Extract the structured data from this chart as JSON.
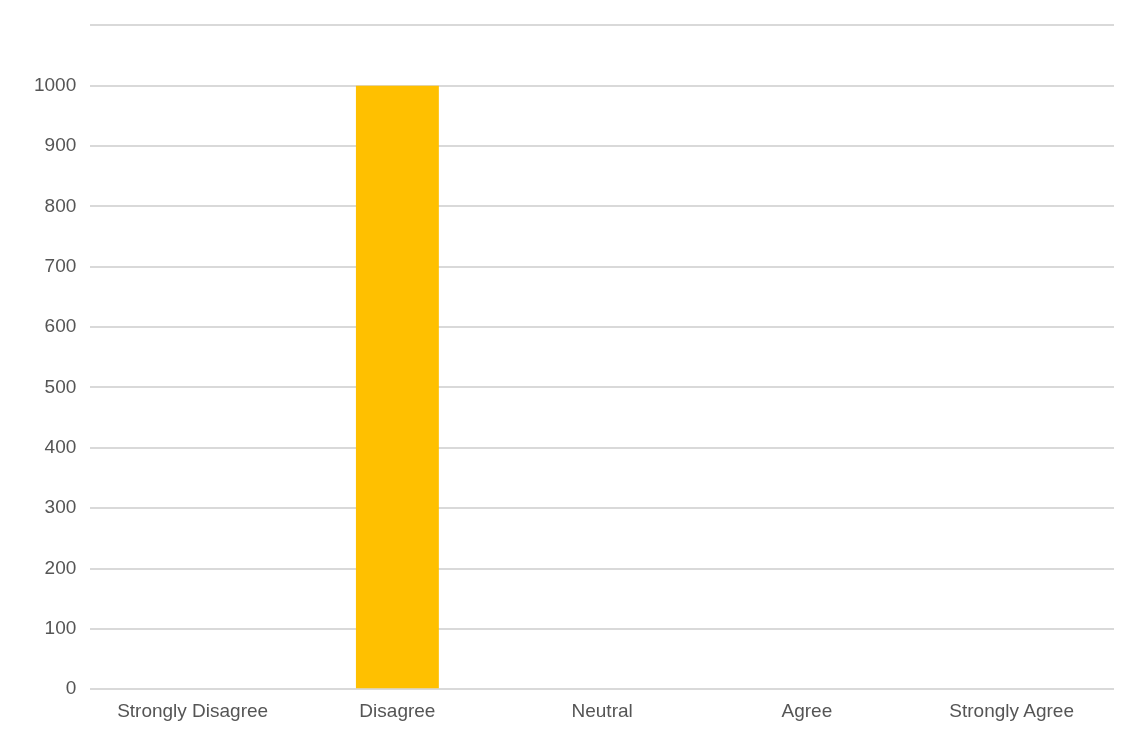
{
  "chart_data": {
    "type": "bar",
    "categories": [
      "Strongly Disagree",
      "Disagree",
      "Neutral",
      "Agree",
      "Strongly Agree"
    ],
    "values": [
      0,
      1000,
      0,
      0,
      0
    ],
    "colors": [
      "#c00000",
      "#ffc000",
      "#3a87b0",
      "#70ad47",
      "#0e4a66"
    ],
    "ylim": [
      0,
      1100
    ],
    "yticks": [
      0,
      100,
      200,
      300,
      400,
      500,
      600,
      700,
      800,
      900,
      1000,
      {
        "value": 1100,
        "label": null
      }
    ],
    "grid": "y"
  }
}
